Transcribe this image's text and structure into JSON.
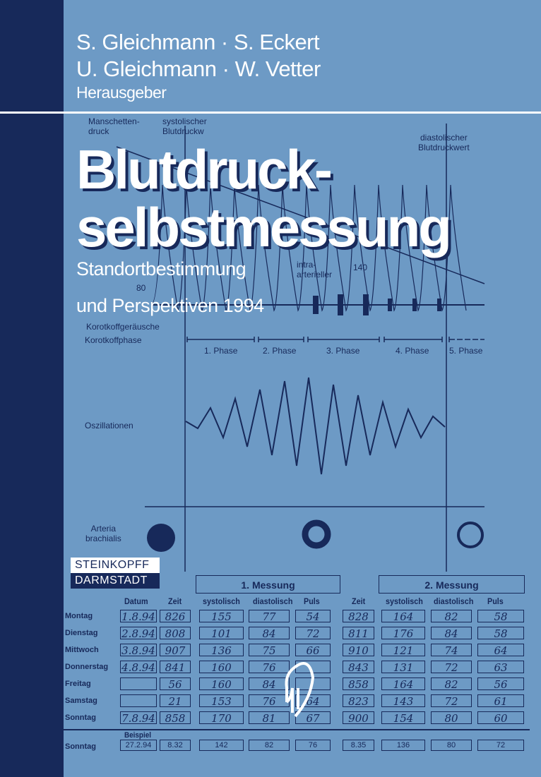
{
  "authors": {
    "line1": "S. Gleichmann · S. Eckert",
    "line2": "U. Gleichmann · W. Vetter",
    "role": "Herausgeber"
  },
  "title": {
    "line1": "Blutdruck-",
    "line2": "selbstmessung"
  },
  "subtitle": {
    "line1": "Standortbestimmung",
    "line2": "und Perspektiven 1994"
  },
  "diagram": {
    "cuff_label": "Manschetten-\ndruck",
    "intra_label": "intra-\narterieller",
    "tick_140": "140",
    "tick_80": "80",
    "systolic_label": "systolischer\nBlutdruckw",
    "diastolic_label": "diastolischer\nBlutdruckwert",
    "korotkoff_sounds_label": "Korotkoffgeräusche",
    "korotkoff_phase_label": "Korotkoffphase",
    "phases": [
      "1. Phase",
      "2. Phase",
      "3. Phase",
      "4. Phase",
      "5. Phase"
    ],
    "oscillation_label": "Oszillationen",
    "artery_label": "Arteria\nbrachialis"
  },
  "table": {
    "measure1": "1. Messung",
    "measure2": "2. Messung",
    "headers": [
      "Datum",
      "Zeit",
      "systolisch",
      "diastolisch",
      "Puls",
      "Zeit",
      "systolisch",
      "diastolisch",
      "Puls"
    ],
    "rows": [
      {
        "day": "Montag",
        "cells": [
          "1.8.94",
          "826",
          "155",
          "77",
          "54",
          "828",
          "164",
          "82",
          "58"
        ]
      },
      {
        "day": "Dienstag",
        "cells": [
          "2.8.94",
          "808",
          "101",
          "84",
          "72",
          "811",
          "176",
          "84",
          "58"
        ]
      },
      {
        "day": "Mittwoch",
        "cells": [
          "3.8.94",
          "907",
          "136",
          "75",
          "66",
          "910",
          "121",
          "74",
          "64"
        ]
      },
      {
        "day": "Donnerstag",
        "cells": [
          "4.8.94",
          "841",
          "160",
          "76",
          "",
          "843",
          "131",
          "72",
          "63"
        ]
      },
      {
        "day": "Freitag",
        "cells": [
          "",
          "56",
          "160",
          "84",
          "",
          "858",
          "164",
          "82",
          "56"
        ]
      },
      {
        "day": "Samstag",
        "cells": [
          "",
          "21",
          "153",
          "76",
          "64",
          "823",
          "143",
          "72",
          "61"
        ]
      },
      {
        "day": "Sonntag",
        "cells": [
          "7.8.94",
          "858",
          "170",
          "81",
          "67",
          "900",
          "154",
          "80",
          "60"
        ]
      }
    ],
    "example_label": "Beispiel",
    "example": {
      "day": "Sonntag",
      "cells": [
        "27.2.94",
        "8.32",
        "142",
        "82",
        "76",
        "8.35",
        "136",
        "80",
        "72"
      ]
    }
  },
  "publisher": {
    "line1": "STEINKOPFF",
    "line2": "DARMSTADT"
  },
  "colors": {
    "background": "#6d9ac5",
    "navy": "#17295a",
    "text": "#ffffff"
  }
}
